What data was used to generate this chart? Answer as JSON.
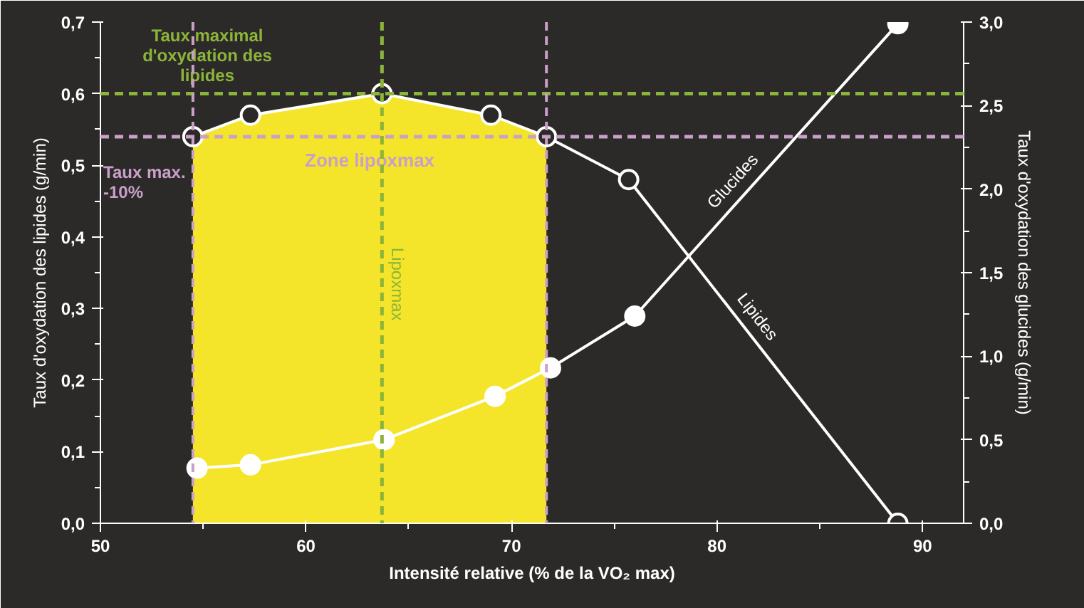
{
  "chart_data": {
    "type": "line",
    "xlabel": "Intensité relative (% de la VO₂ max)",
    "ylabel": "Taux d'oxydation des lipides (g/min)",
    "y2label": "Taux d'oxydation des glucides (g/min)",
    "xlim": [
      50,
      92
    ],
    "xticks": [
      50,
      60,
      70,
      80,
      90
    ],
    "ylim": [
      0,
      0.7
    ],
    "yticks": [
      {
        "value": 0,
        "label": "0,0"
      },
      {
        "value": 0.1,
        "label": "0,1"
      },
      {
        "value": 0.2,
        "label": "0,2"
      },
      {
        "value": 0.3,
        "label": "0,3"
      },
      {
        "value": 0.4,
        "label": "0,4"
      },
      {
        "value": 0.5,
        "label": "0,5"
      },
      {
        "value": 0.6,
        "label": "0,6"
      },
      {
        "value": 0.7,
        "label": "0,7"
      }
    ],
    "y2lim": [
      0,
      3
    ],
    "y2ticks": [
      {
        "value": 0,
        "label": "0,0"
      },
      {
        "value": 0.5,
        "label": "0,5"
      },
      {
        "value": 1,
        "label": "1,0"
      },
      {
        "value": 1.5,
        "label": "1,5"
      },
      {
        "value": 2,
        "label": "2,0"
      },
      {
        "value": 2.5,
        "label": "2,5"
      },
      {
        "value": 3,
        "label": "3,0"
      }
    ],
    "marker": "circle",
    "grid": false,
    "series": [
      {
        "name": "Lipides",
        "color": "#ffffff",
        "x": [
          54.5,
          57.3,
          63.7,
          69.0,
          71.7,
          75.7,
          88.8
        ],
        "values": [
          0.54,
          0.57,
          0.6,
          0.57,
          0.54,
          0.48,
          0.0
        ]
      },
      {
        "name": "Glucides",
        "color": "#ffffff",
        "axis": "y2",
        "x": [
          54.7,
          57.3,
          63.8,
          69.2,
          71.9,
          76.0,
          88.8
        ],
        "values": [
          0.33,
          0.35,
          0.5,
          0.76,
          0.93,
          1.24,
          2.99
        ]
      }
    ],
    "bands": [
      {
        "axis": "x",
        "from": 54.5,
        "to": 71.7,
        "label": "Zone lipoxmax",
        "color": "#f5e52a"
      }
    ],
    "ref_lines": [
      {
        "axis": "y",
        "value": 0.6,
        "label": "Taux maximal d'oxydation des lipides",
        "color": "#8db43a",
        "line_style": "dashed"
      },
      {
        "axis": "y",
        "value": 0.54,
        "label": "Taux max. -10%",
        "color": "#c9a0c8",
        "line_style": "dashed"
      },
      {
        "axis": "x",
        "value": 63.7,
        "label": "Lipoxmax",
        "color": "#8db43a",
        "line_style": "dashed"
      },
      {
        "axis": "x",
        "value": 54.5,
        "color": "#c9a0c8",
        "line_style": "dashed"
      },
      {
        "axis": "x",
        "value": 71.7,
        "color": "#c9a0c8",
        "line_style": "dashed"
      }
    ]
  }
}
